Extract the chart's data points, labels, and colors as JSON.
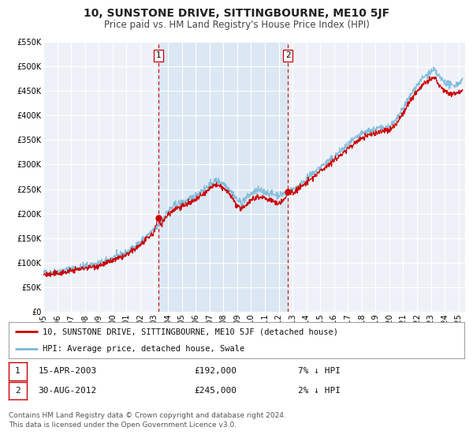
{
  "title": "10, SUNSTONE DRIVE, SITTINGBOURNE, ME10 5JF",
  "subtitle": "Price paid vs. HM Land Registry's House Price Index (HPI)",
  "xlim_start": 1995.0,
  "xlim_end": 2025.5,
  "ylim_min": 0,
  "ylim_max": 550000,
  "yticks": [
    0,
    50000,
    100000,
    150000,
    200000,
    250000,
    300000,
    350000,
    400000,
    450000,
    500000,
    550000
  ],
  "ytick_labels": [
    "£0",
    "£50K",
    "£100K",
    "£150K",
    "£200K",
    "£250K",
    "£300K",
    "£350K",
    "£400K",
    "£450K",
    "£500K",
    "£550K"
  ],
  "xticks": [
    1995,
    1996,
    1997,
    1998,
    1999,
    2000,
    2001,
    2002,
    2003,
    2004,
    2005,
    2006,
    2007,
    2008,
    2009,
    2010,
    2011,
    2012,
    2013,
    2014,
    2015,
    2016,
    2017,
    2018,
    2019,
    2020,
    2021,
    2022,
    2023,
    2024,
    2025
  ],
  "hpi_color": "#7ab8d9",
  "price_color": "#cc0000",
  "marker_color": "#cc0000",
  "bg_color": "#ffffff",
  "plot_bg_color": "#eef2f8",
  "grid_color": "#ffffff",
  "transaction1_x": 2003.29,
  "transaction1_y": 192000,
  "transaction1_label": "1",
  "transaction2_x": 2012.66,
  "transaction2_y": 245000,
  "transaction2_label": "2",
  "vline_color": "#cc0000",
  "shade_color": "#ccdff0",
  "legend_line1": "10, SUNSTONE DRIVE, SITTINGBOURNE, ME10 5JF (detached house)",
  "legend_line2": "HPI: Average price, detached house, Swale",
  "table_row1_num": "1",
  "table_row1_date": "15-APR-2003",
  "table_row1_price": "£192,000",
  "table_row1_hpi": "7% ↓ HPI",
  "table_row2_num": "2",
  "table_row2_date": "30-AUG-2012",
  "table_row2_price": "£245,000",
  "table_row2_hpi": "2% ↓ HPI",
  "footer": "Contains HM Land Registry data © Crown copyright and database right 2024.\nThis data is licensed under the Open Government Licence v3.0.",
  "title_fontsize": 10,
  "subtitle_fontsize": 8.5,
  "tick_fontsize": 7,
  "legend_fontsize": 7.5,
  "table_fontsize": 8,
  "footer_fontsize": 6.5
}
